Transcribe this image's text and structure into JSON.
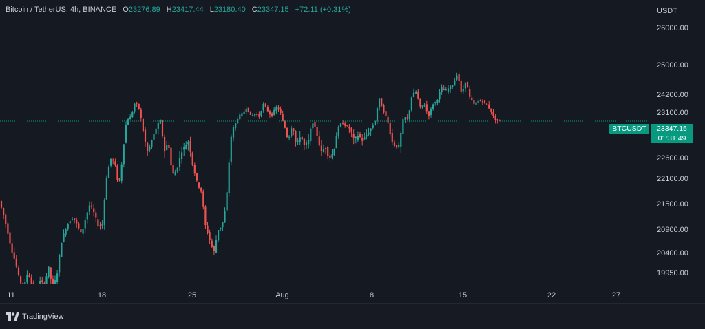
{
  "header": {
    "symbol": "Bitcoin / TetherUS, 4h, BINANCE",
    "o_label": "O",
    "o_value": "23276.89",
    "h_label": "H",
    "h_value": "23417.44",
    "l_label": "L",
    "l_value": "23180.40",
    "c_label": "C",
    "c_value": "23347.15",
    "change": "+72.11 (+0.31%)"
  },
  "footer": {
    "brand": "TradingView"
  },
  "colors": {
    "up": "#26a69a",
    "down": "#ef5350",
    "accent": "#089981",
    "background": "#151922"
  },
  "chart_data": {
    "type": "candlestick",
    "currency": "USDT",
    "y_ticks": [
      "26000.00",
      "25000.00",
      "24200.00",
      "23100.00",
      "22600.00",
      "22100.00",
      "21500.00",
      "20900.00",
      "20400.00",
      "19950.00"
    ],
    "x_ticks": [
      "11",
      "18",
      "25",
      "Aug",
      "8",
      "15",
      "22",
      "27"
    ],
    "last_price": {
      "symbol": "BTCUSDT",
      "price": "23347.15",
      "countdown": "01:31:49",
      "value": 23347.15
    },
    "anchors": [
      [
        0,
        21600
      ],
      [
        6,
        21300
      ],
      [
        12,
        20900
      ],
      [
        18,
        20500
      ],
      [
        24,
        20200
      ],
      [
        30,
        19800
      ],
      [
        36,
        19650
      ],
      [
        42,
        20000
      ],
      [
        48,
        19700
      ],
      [
        54,
        19500
      ],
      [
        60,
        19800
      ],
      [
        66,
        19700
      ],
      [
        72,
        20100
      ],
      [
        78,
        19650
      ],
      [
        84,
        19900
      ],
      [
        90,
        20600
      ],
      [
        96,
        20900
      ],
      [
        102,
        21100
      ],
      [
        108,
        21200
      ],
      [
        114,
        21000
      ],
      [
        120,
        20800
      ],
      [
        126,
        21200
      ],
      [
        132,
        21500
      ],
      [
        138,
        21300
      ],
      [
        144,
        21000
      ],
      [
        150,
        21000
      ],
      [
        156,
        22100
      ],
      [
        162,
        22600
      ],
      [
        168,
        22500
      ],
      [
        174,
        21900
      ],
      [
        180,
        22700
      ],
      [
        186,
        23400
      ],
      [
        192,
        23500
      ],
      [
        198,
        24000
      ],
      [
        204,
        23700
      ],
      [
        210,
        23000
      ],
      [
        216,
        22700
      ],
      [
        222,
        22900
      ],
      [
        228,
        23100
      ],
      [
        234,
        23400
      ],
      [
        240,
        22700
      ],
      [
        246,
        22900
      ],
      [
        252,
        22200
      ],
      [
        258,
        22300
      ],
      [
        264,
        22700
      ],
      [
        270,
        22800
      ],
      [
        276,
        22900
      ],
      [
        282,
        22400
      ],
      [
        288,
        22000
      ],
      [
        294,
        21800
      ],
      [
        300,
        21000
      ],
      [
        306,
        20700
      ],
      [
        312,
        20400
      ],
      [
        318,
        20900
      ],
      [
        324,
        21000
      ],
      [
        330,
        21500
      ],
      [
        336,
        22900
      ],
      [
        342,
        23200
      ],
      [
        348,
        23500
      ],
      [
        354,
        23600
      ],
      [
        360,
        23800
      ],
      [
        366,
        23500
      ],
      [
        372,
        23600
      ],
      [
        378,
        23500
      ],
      [
        384,
        23900
      ],
      [
        390,
        23700
      ],
      [
        396,
        23500
      ],
      [
        402,
        23800
      ],
      [
        408,
        23700
      ],
      [
        414,
        23200
      ],
      [
        420,
        22900
      ],
      [
        426,
        23200
      ],
      [
        432,
        22800
      ],
      [
        438,
        23000
      ],
      [
        444,
        22800
      ],
      [
        450,
        22900
      ],
      [
        456,
        23300
      ],
      [
        462,
        23000
      ],
      [
        468,
        22700
      ],
      [
        474,
        22800
      ],
      [
        480,
        22600
      ],
      [
        486,
        22700
      ],
      [
        492,
        23100
      ],
      [
        498,
        23300
      ],
      [
        504,
        23200
      ],
      [
        510,
        23100
      ],
      [
        516,
        22900
      ],
      [
        522,
        23000
      ],
      [
        528,
        22900
      ],
      [
        534,
        23000
      ],
      [
        540,
        23100
      ],
      [
        546,
        23300
      ],
      [
        552,
        24100
      ],
      [
        558,
        23700
      ],
      [
        564,
        23400
      ],
      [
        570,
        22900
      ],
      [
        576,
        22800
      ],
      [
        582,
        22800
      ],
      [
        588,
        23500
      ],
      [
        594,
        23400
      ],
      [
        600,
        24200
      ],
      [
        606,
        24300
      ],
      [
        612,
        23800
      ],
      [
        618,
        23900
      ],
      [
        624,
        23500
      ],
      [
        630,
        23900
      ],
      [
        636,
        24000
      ],
      [
        642,
        24400
      ],
      [
        648,
        24300
      ],
      [
        654,
        24400
      ],
      [
        660,
        24500
      ],
      [
        666,
        24800
      ],
      [
        672,
        24200
      ],
      [
        678,
        24600
      ],
      [
        684,
        24100
      ],
      [
        690,
        23900
      ],
      [
        696,
        24000
      ],
      [
        702,
        24000
      ],
      [
        708,
        23900
      ],
      [
        714,
        23700
      ],
      [
        720,
        23400
      ],
      [
        726,
        23350
      ]
    ]
  }
}
